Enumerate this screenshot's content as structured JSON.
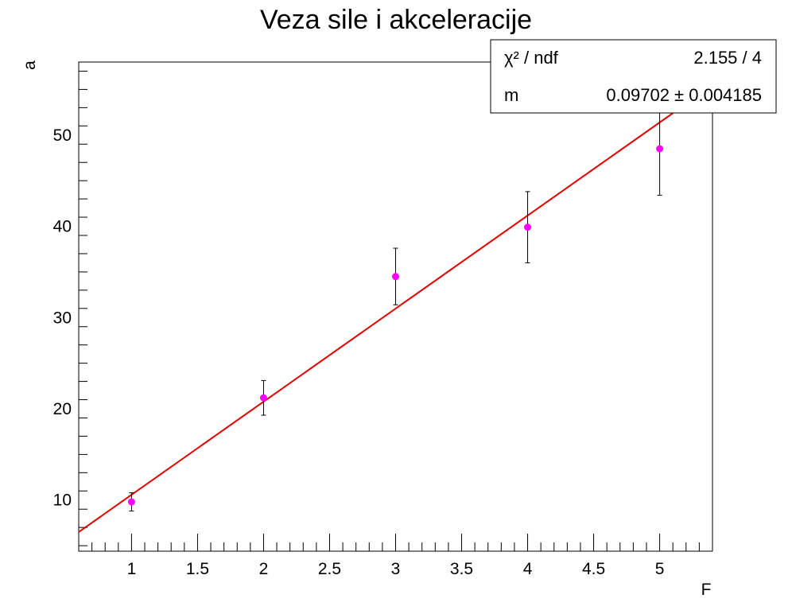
{
  "chart_data": {
    "type": "scatter",
    "title": "Veza sile i akceleracije",
    "xlabel": "F",
    "ylabel": "a",
    "xlim": [
      0.6,
      5.4
    ],
    "ylim": [
      4.4,
      58.0
    ],
    "x_ticks": [
      1,
      1.5,
      2,
      2.5,
      3,
      3.5,
      4,
      4.5,
      5
    ],
    "x_tick_labels": [
      "1",
      "1.5",
      "2",
      "2.5",
      "3",
      "3.5",
      "4",
      "4.5",
      "5"
    ],
    "y_ticks": [
      10,
      20,
      30,
      40,
      50
    ],
    "y_tick_labels": [
      "10",
      "20",
      "30",
      "40",
      "50"
    ],
    "grid": false,
    "legend": "none",
    "series": [
      {
        "points": [
          {
            "x": 1,
            "y": 9.8,
            "err": 1.0
          },
          {
            "x": 2,
            "y": 21.2,
            "err": 1.9
          },
          {
            "x": 3,
            "y": 34.5,
            "err": 3.1
          },
          {
            "x": 4,
            "y": 39.9,
            "err": 3.9
          },
          {
            "x": 5,
            "y": 48.5,
            "err": 5.1
          }
        ],
        "color": "#ff00ff"
      }
    ],
    "fit": {
      "color": "#e00000",
      "x_range": [
        0.6,
        5.1
      ],
      "y_at_range": [
        6.5,
        52.4
      ]
    },
    "stats_box": {
      "rows": [
        {
          "label": "χ² / ndf",
          "value": "2.155 / 4"
        },
        {
          "label": "m",
          "value": "0.09702 ± 0.004185"
        }
      ]
    }
  }
}
